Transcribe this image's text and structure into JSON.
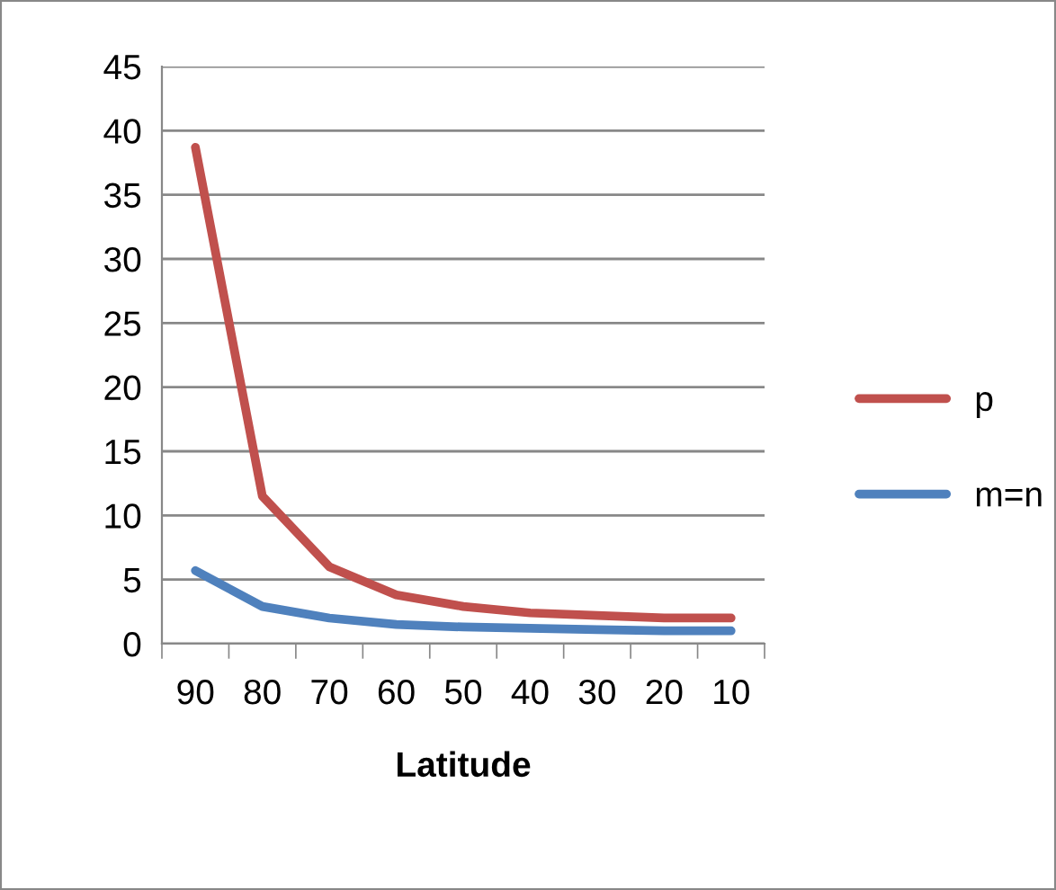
{
  "chart_data": {
    "type": "line",
    "xlabel": "Latitude",
    "categories": [
      "90",
      "80",
      "70",
      "60",
      "50",
      "40",
      "30",
      "20",
      "10"
    ],
    "series": [
      {
        "name": "p",
        "color": "#c0504d",
        "values": [
          38.7,
          11.5,
          6.0,
          3.8,
          2.9,
          2.4,
          2.2,
          2.0,
          2.0
        ]
      },
      {
        "name": "m=n",
        "color": "#4f81bd",
        "values": [
          5.7,
          2.9,
          2.0,
          1.5,
          1.3,
          1.2,
          1.1,
          1.0,
          1.0
        ]
      }
    ],
    "ylim": [
      0,
      45
    ],
    "yticks": [
      0,
      5,
      10,
      15,
      20,
      25,
      30,
      35,
      40,
      45
    ],
    "grid": "y",
    "legend": "right",
    "marker": "none",
    "line_style": "solid"
  }
}
